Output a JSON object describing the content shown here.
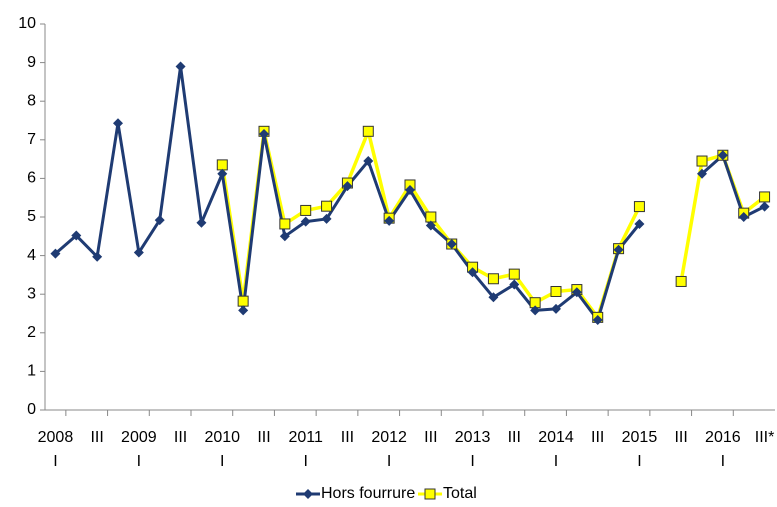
{
  "chart_data": {
    "type": "line",
    "categories": [
      [
        "2008",
        "I"
      ],
      null,
      [
        "III"
      ],
      null,
      [
        "2009",
        "I"
      ],
      null,
      [
        "III"
      ],
      null,
      [
        "2010",
        "I"
      ],
      null,
      [
        "III"
      ],
      null,
      [
        "2011",
        "I"
      ],
      null,
      [
        "III"
      ],
      null,
      [
        "2012",
        "I"
      ],
      null,
      [
        "III"
      ],
      null,
      [
        "2013",
        "I"
      ],
      null,
      [
        "III"
      ],
      null,
      [
        "2014",
        "I"
      ],
      null,
      [
        "III"
      ],
      null,
      [
        "2015",
        "I"
      ],
      null,
      [
        "III"
      ],
      null,
      [
        "2016",
        "I"
      ],
      null,
      [
        "III*"
      ]
    ],
    "series": [
      {
        "name": "Hors fourrure",
        "color": "#1f3b73",
        "marker": "diamond",
        "values": [
          4.05,
          4.52,
          3.97,
          7.43,
          4.08,
          4.92,
          8.9,
          4.85,
          6.12,
          2.58,
          7.15,
          4.5,
          4.88,
          4.95,
          5.8,
          6.45,
          4.9,
          5.7,
          4.78,
          4.3,
          3.57,
          2.92,
          3.25,
          2.58,
          2.62,
          3.05,
          2.33,
          4.15,
          4.82,
          null,
          null,
          6.12,
          6.6,
          5.0,
          5.27
        ]
      },
      {
        "name": "Total",
        "color": "#ffff00",
        "marker": "square",
        "values": [
          null,
          null,
          null,
          null,
          null,
          null,
          null,
          null,
          6.35,
          2.82,
          7.22,
          4.82,
          5.17,
          5.28,
          5.88,
          7.22,
          4.97,
          5.83,
          5.0,
          4.3,
          3.7,
          3.4,
          3.52,
          2.78,
          3.07,
          3.12,
          2.4,
          4.18,
          5.27,
          null,
          3.33,
          6.45,
          6.6,
          5.1,
          5.52
        ]
      }
    ],
    "ylim": [
      0,
      10
    ],
    "yticks": [
      0,
      1,
      2,
      3,
      4,
      5,
      6,
      7,
      8,
      9,
      10
    ],
    "grid": false,
    "legend": "bottom"
  }
}
